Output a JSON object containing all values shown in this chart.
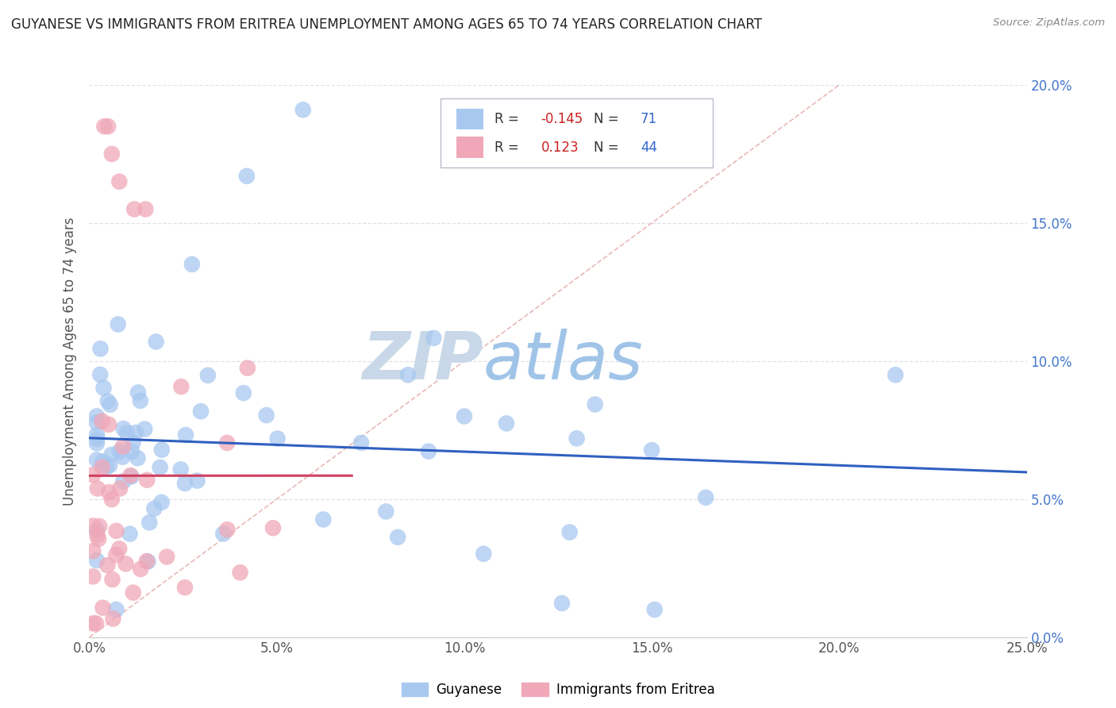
{
  "title": "GUYANESE VS IMMIGRANTS FROM ERITREA UNEMPLOYMENT AMONG AGES 65 TO 74 YEARS CORRELATION CHART",
  "source": "Source: ZipAtlas.com",
  "ylabel": "Unemployment Among Ages 65 to 74 years",
  "xlim": [
    0.0,
    0.25
  ],
  "ylim": [
    0.0,
    0.2
  ],
  "xticks": [
    0.0,
    0.05,
    0.1,
    0.15,
    0.2,
    0.25
  ],
  "yticks": [
    0.0,
    0.05,
    0.1,
    0.15,
    0.2
  ],
  "xticklabels": [
    "0.0%",
    "5.0%",
    "10.0%",
    "15.0%",
    "20.0%",
    "25.0%"
  ],
  "yticklabels": [
    "0.0%",
    "5.0%",
    "10.0%",
    "15.0%",
    "20.0%"
  ],
  "legend_blue_label": "Guyanese",
  "legend_pink_label": "Immigrants from Eritrea",
  "R_blue": -0.145,
  "N_blue": 71,
  "R_pink": 0.123,
  "N_pink": 44,
  "blue_color": "#a8c8f0",
  "pink_color": "#f0a8b8",
  "blue_line_color": "#3060c0",
  "pink_line_color": "#d04060",
  "diag_color": "#e8b0b0",
  "watermark_zip_color": "#c8d8e8",
  "watermark_atlas_color": "#a0c4e8",
  "bg_color": "#ffffff",
  "grid_color": "#e0e0e8",
  "tick_color": "#4477cc",
  "title_color": "#222222",
  "source_color": "#888888",
  "ylabel_color": "#555555"
}
